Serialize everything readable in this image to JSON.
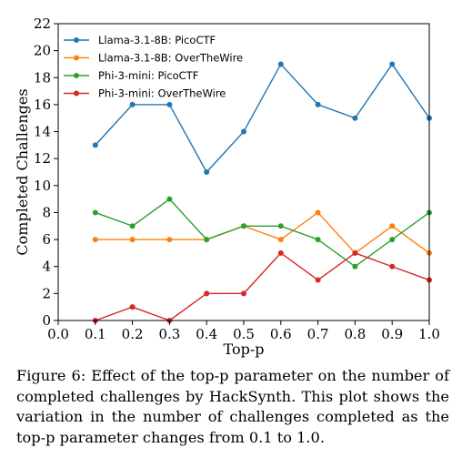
{
  "chart_data": {
    "type": "line",
    "title": "",
    "xlabel": "Top-p",
    "ylabel": "Completed Challenges",
    "xlim": [
      0.0,
      1.0
    ],
    "ylim": [
      0,
      22
    ],
    "x_ticks": [
      "0.0",
      "0.1",
      "0.2",
      "0.3",
      "0.4",
      "0.5",
      "0.6",
      "0.7",
      "0.8",
      "0.9",
      "1.0"
    ],
    "y_ticks": [
      "0",
      "2",
      "4",
      "6",
      "8",
      "10",
      "12",
      "14",
      "16",
      "18",
      "20",
      "22"
    ],
    "x": [
      0.1,
      0.2,
      0.3,
      0.4,
      0.5,
      0.6,
      0.7,
      0.8,
      0.9,
      1.0
    ],
    "legend_position": "top-left",
    "grid": false,
    "series": [
      {
        "name": "Llama-3.1-8B: PicoCTF",
        "color": "#1f77b4",
        "values": [
          13,
          16,
          16,
          11,
          14,
          19,
          16,
          15,
          19,
          15
        ]
      },
      {
        "name": "Llama-3.1-8B: OverTheWire",
        "color": "#ff7f0e",
        "values": [
          6,
          6,
          6,
          6,
          7,
          6,
          8,
          5,
          7,
          5
        ]
      },
      {
        "name": "Phi-3-mini: PicoCTF",
        "color": "#2ca02c",
        "values": [
          8,
          7,
          9,
          6,
          7,
          7,
          6,
          4,
          6,
          8
        ]
      },
      {
        "name": "Phi-3-mini: OverTheWire",
        "color": "#d62728",
        "values": [
          0,
          1,
          0,
          2,
          2,
          5,
          3,
          5,
          4,
          3
        ]
      }
    ]
  },
  "caption": "Figure 6: Effect of the top-p parameter on the number of completed challenges by HackSynth. This plot shows the variation in the number of challenges completed as the top-p parameter changes from 0.1 to 1.0."
}
